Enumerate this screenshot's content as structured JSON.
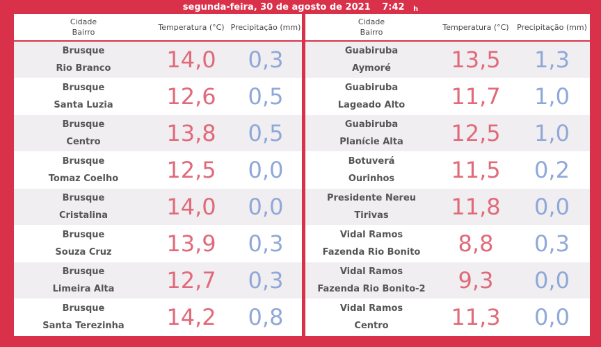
{
  "header": {
    "date": "segunda-feira, 30 de agosto de 2021",
    "time": "7:42",
    "time_unit": "h"
  },
  "columns": {
    "city": "Cidade",
    "district": "Bairro",
    "temperature": "Temperatura (°C)",
    "precipitation": "Precipitação (mm)"
  },
  "left": [
    {
      "city": "Brusque",
      "district": "Rio Branco",
      "temp": "14,0",
      "prec": "0,3"
    },
    {
      "city": "Brusque",
      "district": "Santa Luzia",
      "temp": "12,6",
      "prec": "0,5"
    },
    {
      "city": "Brusque",
      "district": "Centro",
      "temp": "13,8",
      "prec": "0,5"
    },
    {
      "city": "Brusque",
      "district": "Tomaz Coelho",
      "temp": "12,5",
      "prec": "0,0"
    },
    {
      "city": "Brusque",
      "district": "Cristalina",
      "temp": "14,0",
      "prec": "0,0"
    },
    {
      "city": "Brusque",
      "district": "Souza Cruz",
      "temp": "13,9",
      "prec": "0,3"
    },
    {
      "city": "Brusque",
      "district": "Limeira Alta",
      "temp": "12,7",
      "prec": "0,3"
    },
    {
      "city": "Brusque",
      "district": "Santa Terezinha",
      "temp": "14,2",
      "prec": "0,8"
    }
  ],
  "right": [
    {
      "city": "Guabiruba",
      "district": "Aymoré",
      "temp": "13,5",
      "prec": "1,3"
    },
    {
      "city": "Guabiruba",
      "district": "Lageado Alto",
      "temp": "11,7",
      "prec": "1,0"
    },
    {
      "city": "Guabiruba",
      "district": "Planície Alta",
      "temp": "12,5",
      "prec": "1,0"
    },
    {
      "city": "Botuverá",
      "district": "Ourinhos",
      "temp": "11,5",
      "prec": "0,2"
    },
    {
      "city": "Presidente Nereu",
      "district": "Tirivas",
      "temp": "11,8",
      "prec": "0,0"
    },
    {
      "city": "Vidal Ramos",
      "district": "Fazenda Rio Bonito",
      "temp": "8,8",
      "prec": "0,3"
    },
    {
      "city": "Vidal Ramos",
      "district": "Fazenda Rio Bonito-2",
      "temp": "9,3",
      "prec": "0,0"
    },
    {
      "city": "Vidal Ramos",
      "district": "Centro",
      "temp": "11,3",
      "prec": "0,0"
    }
  ]
}
